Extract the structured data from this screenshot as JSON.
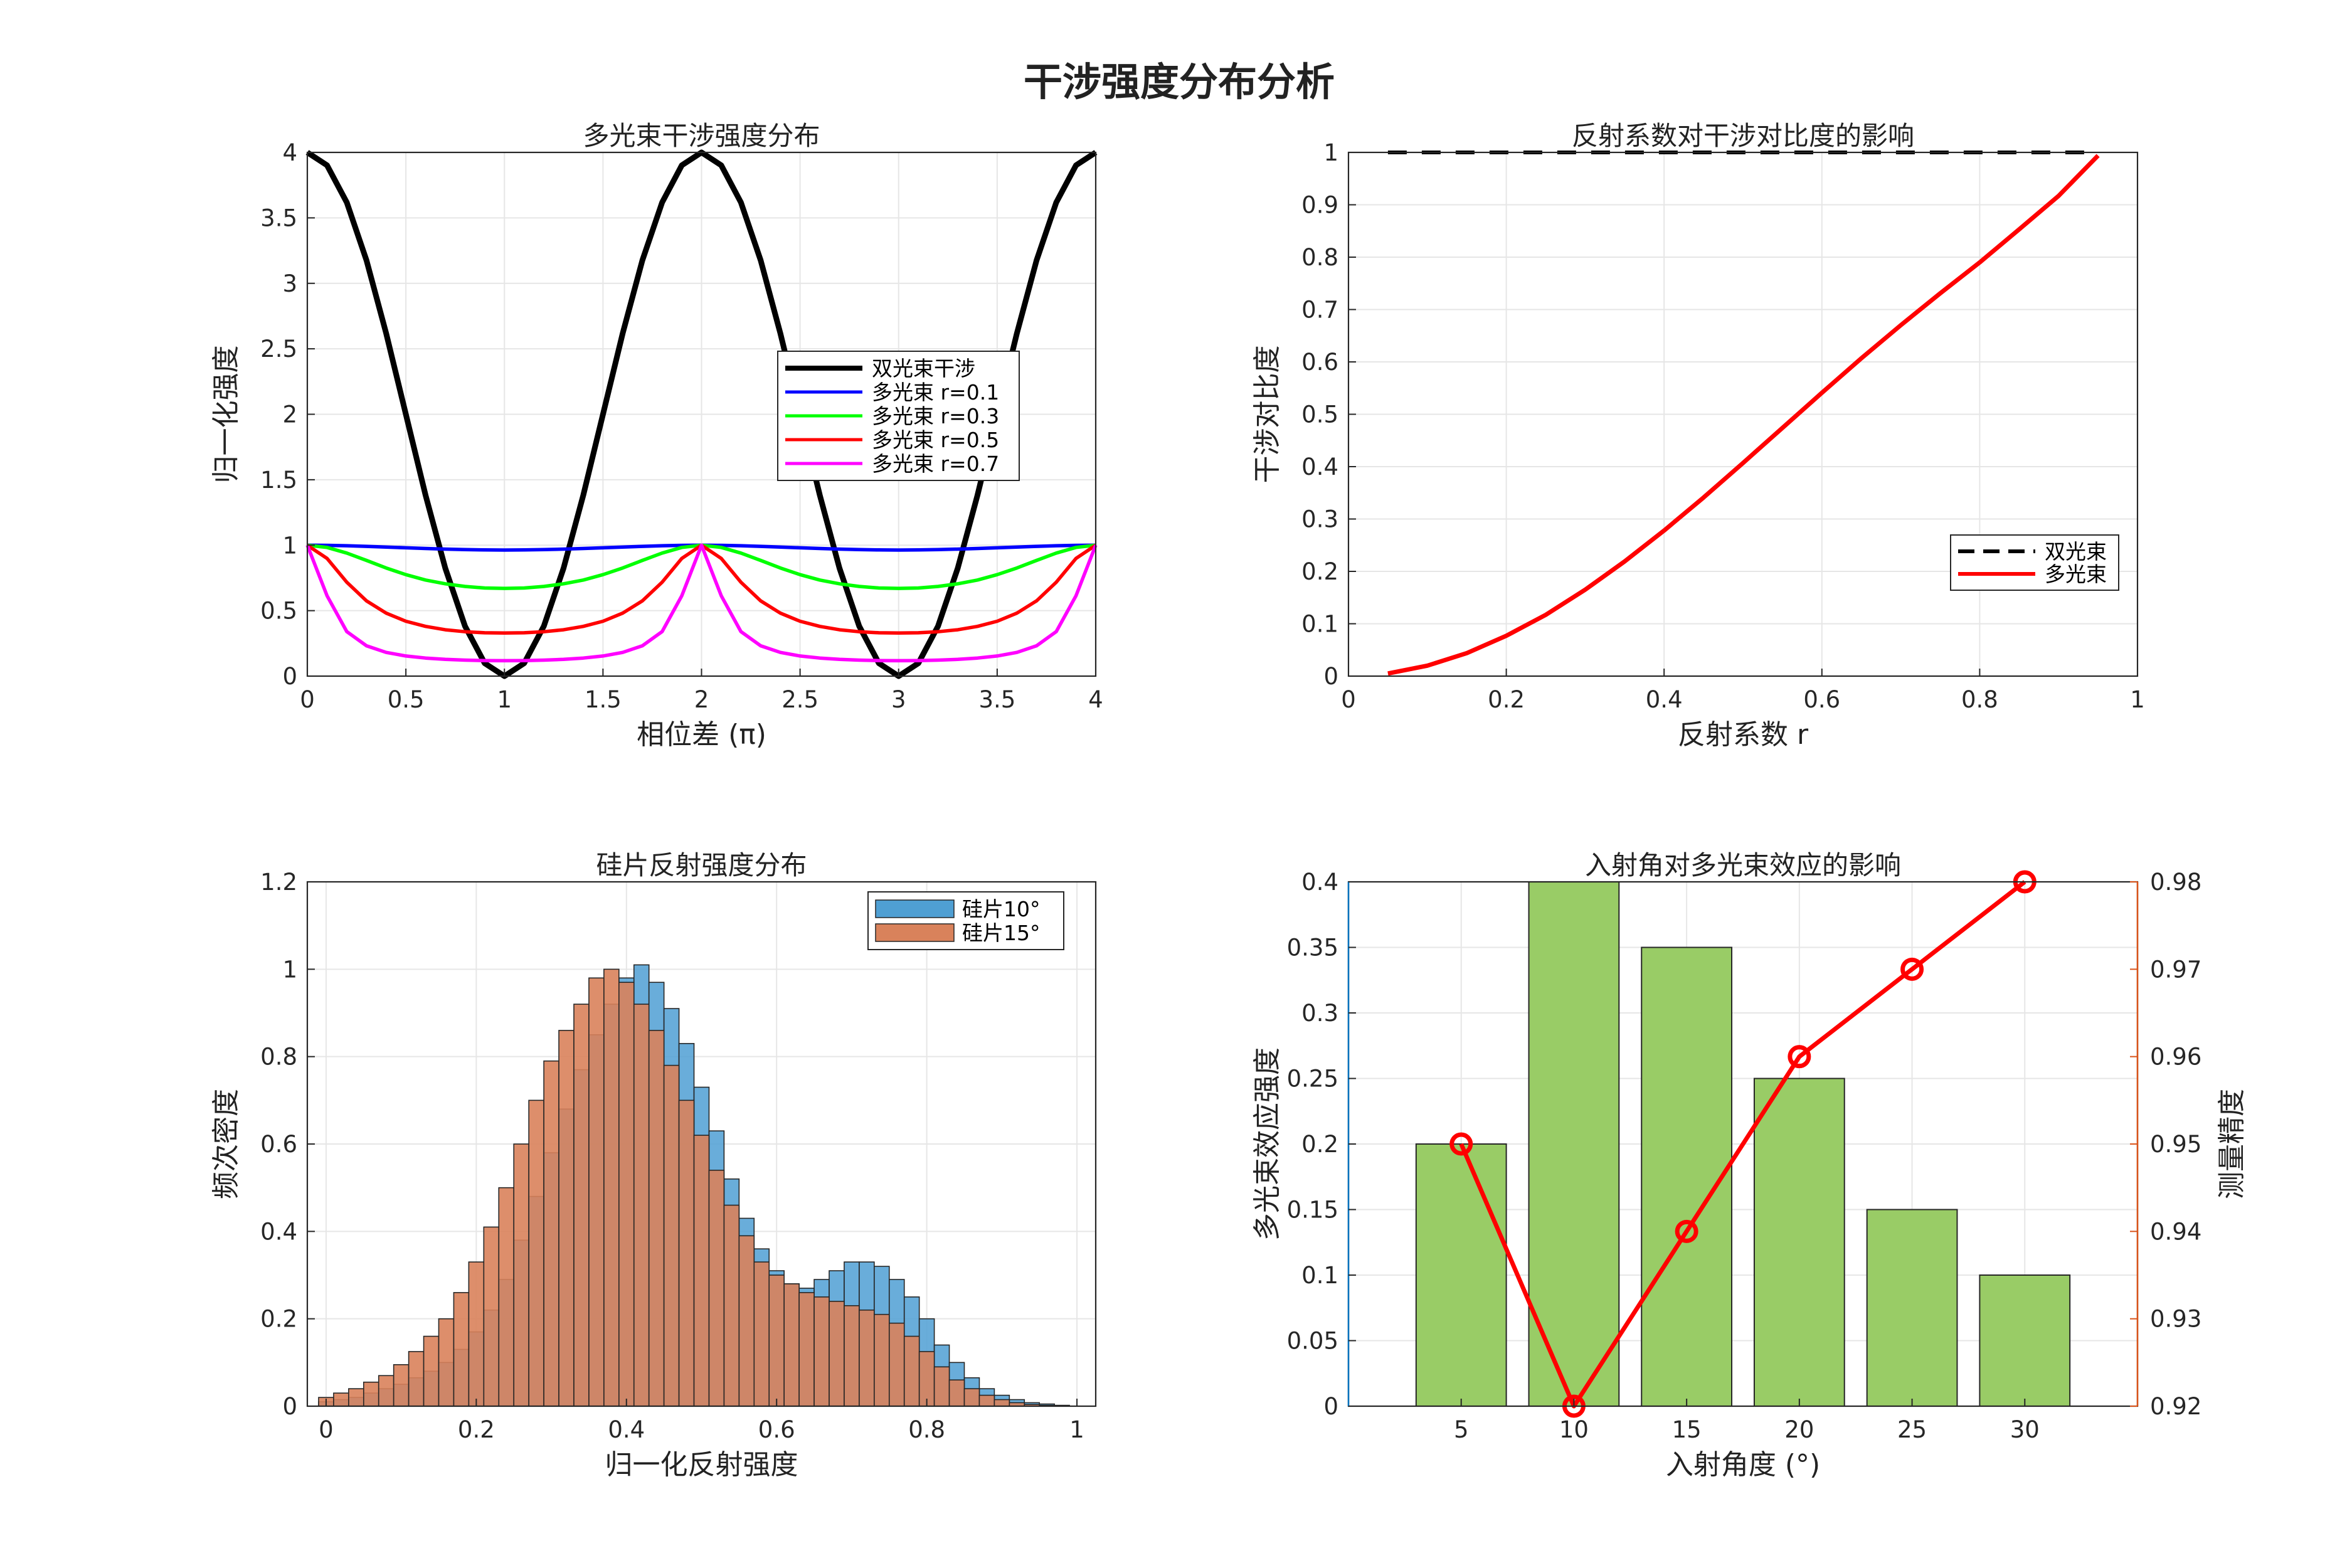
{
  "suptitle": "干涉强度分布分析",
  "chart_data": [
    {
      "type": "line",
      "title": "多光束干涉强度分布",
      "xlabel": "相位差 (π)",
      "ylabel": "归一化强度",
      "xlim": [
        0,
        4
      ],
      "ylim": [
        0,
        4
      ],
      "xticks": [
        0,
        0.5,
        1,
        1.5,
        2,
        2.5,
        3,
        3.5,
        4
      ],
      "xtick_labels": [
        "0",
        "0.5",
        "1",
        "1.5",
        "2",
        "2.5",
        "3",
        "3.5",
        "4"
      ],
      "yticks": [
        0,
        0.5,
        1,
        1.5,
        2,
        2.5,
        3,
        3.5,
        4
      ],
      "ytick_labels": [
        "0",
        "0.5",
        "1",
        "1.5",
        "2",
        "2.5",
        "3",
        "3.5",
        "4"
      ],
      "grid": true,
      "legend_position": "right-center",
      "x": [
        0,
        0.1,
        0.2,
        0.3,
        0.4,
        0.5,
        0.6,
        0.7,
        0.8,
        0.9,
        1,
        1.1,
        1.2,
        1.3,
        1.4,
        1.5,
        1.6,
        1.7,
        1.8,
        1.9,
        2,
        2.1,
        2.2,
        2.3,
        2.4,
        2.5,
        2.6,
        2.7,
        2.8,
        2.9,
        3,
        3.1,
        3.2,
        3.3,
        3.4,
        3.5,
        3.6,
        3.7,
        3.8,
        3.9,
        4
      ],
      "series": [
        {
          "name": "双光束干涉",
          "color": "#000000",
          "values": [
            4,
            3.902,
            3.618,
            3.176,
            2.618,
            2,
            1.382,
            0.824,
            0.382,
            0.098,
            0,
            0.098,
            0.382,
            0.824,
            1.382,
            2,
            2.618,
            3.176,
            3.618,
            3.902,
            4,
            3.902,
            3.618,
            3.176,
            2.618,
            2,
            1.382,
            0.824,
            0.382,
            0.098,
            0,
            0.098,
            0.382,
            0.824,
            1.382,
            2,
            2.618,
            3.176,
            3.618,
            3.902,
            4
          ]
        },
        {
          "name": "多光束 r=0.1",
          "color": "#0000ff",
          "values": [
            1,
            0.999,
            0.996,
            0.991,
            0.986,
            0.98,
            0.975,
            0.97,
            0.966,
            0.964,
            0.963,
            0.964,
            0.966,
            0.97,
            0.975,
            0.98,
            0.986,
            0.991,
            0.996,
            0.999,
            1,
            0.999,
            0.996,
            0.991,
            0.986,
            0.98,
            0.975,
            0.97,
            0.966,
            0.964,
            0.963,
            0.964,
            0.966,
            0.97,
            0.975,
            0.98,
            0.986,
            0.991,
            0.996,
            0.999,
            1
          ]
        },
        {
          "name": "多光束 r=0.3",
          "color": "#00ff00",
          "values": [
            1,
            0.983,
            0.94,
            0.884,
            0.826,
            0.775,
            0.734,
            0.705,
            0.685,
            0.673,
            0.67,
            0.673,
            0.685,
            0.705,
            0.734,
            0.775,
            0.826,
            0.884,
            0.94,
            0.983,
            1,
            0.983,
            0.94,
            0.884,
            0.826,
            0.775,
            0.734,
            0.705,
            0.685,
            0.673,
            0.67,
            0.673,
            0.685,
            0.705,
            0.734,
            0.775,
            0.826,
            0.884,
            0.94,
            0.983,
            1
          ]
        },
        {
          "name": "多光束 r=0.5",
          "color": "#ff0000",
          "values": [
            1,
            0.899,
            0.717,
            0.575,
            0.481,
            0.419,
            0.38,
            0.354,
            0.339,
            0.331,
            0.329,
            0.331,
            0.339,
            0.354,
            0.38,
            0.419,
            0.481,
            0.575,
            0.717,
            0.899,
            1,
            0.899,
            0.717,
            0.575,
            0.481,
            0.419,
            0.38,
            0.354,
            0.339,
            0.331,
            0.329,
            0.331,
            0.339,
            0.354,
            0.38,
            0.419,
            0.481,
            0.575,
            0.717,
            0.899,
            1
          ]
        },
        {
          "name": "多光束 r=0.7",
          "color": "#ff00ff",
          "values": [
            1,
            0.614,
            0.34,
            0.232,
            0.181,
            0.154,
            0.138,
            0.128,
            0.122,
            0.119,
            0.118,
            0.119,
            0.122,
            0.128,
            0.138,
            0.154,
            0.181,
            0.232,
            0.34,
            0.614,
            1,
            0.614,
            0.34,
            0.232,
            0.181,
            0.154,
            0.138,
            0.128,
            0.122,
            0.119,
            0.118,
            0.119,
            0.122,
            0.128,
            0.138,
            0.154,
            0.181,
            0.232,
            0.34,
            0.614,
            1
          ]
        }
      ]
    },
    {
      "type": "line",
      "title": "反射系数对干涉对比度的影响",
      "xlabel": "反射系数 r",
      "ylabel": "干涉对比度",
      "xlim": [
        0,
        1
      ],
      "ylim": [
        0,
        1
      ],
      "xticks": [
        0,
        0.2,
        0.4,
        0.6,
        0.8,
        1
      ],
      "xtick_labels": [
        "0",
        "0.2",
        "0.4",
        "0.6",
        "0.8",
        "1"
      ],
      "yticks": [
        0,
        0.1,
        0.2,
        0.3,
        0.4,
        0.5,
        0.6,
        0.7,
        0.8,
        0.9,
        1
      ],
      "ytick_labels": [
        "0",
        "0.1",
        "0.2",
        "0.3",
        "0.4",
        "0.5",
        "0.6",
        "0.7",
        "0.8",
        "0.9",
        "1"
      ],
      "grid": true,
      "legend_position": "bottom-right",
      "x": [
        0.05,
        0.1,
        0.15,
        0.2,
        0.25,
        0.3,
        0.35,
        0.4,
        0.45,
        0.5,
        0.55,
        0.6,
        0.65,
        0.7,
        0.75,
        0.8,
        0.85,
        0.9,
        0.95
      ],
      "series": [
        {
          "name": "双光束",
          "color": "#000000",
          "dash": true,
          "values": [
            1,
            1,
            1,
            1,
            1,
            1,
            1,
            1,
            1,
            1,
            1,
            1,
            1,
            1,
            1,
            1,
            1,
            1,
            1
          ]
        },
        {
          "name": "多光束",
          "color": "#ff0000",
          "values": [
            0.005,
            0.02,
            0.044,
            0.077,
            0.117,
            0.165,
            0.219,
            0.278,
            0.341,
            0.407,
            0.474,
            0.541,
            0.607,
            0.67,
            0.731,
            0.79,
            0.853,
            0.917,
            0.994
          ]
        }
      ]
    },
    {
      "type": "bar",
      "title": "硅片反射强度分布",
      "xlabel": "归一化反射强度",
      "ylabel": "频次密度",
      "xlim": [
        -0.025,
        1.025
      ],
      "ylim": [
        0,
        1.2
      ],
      "xticks": [
        0,
        0.2,
        0.4,
        0.6,
        0.8,
        1
      ],
      "xtick_labels": [
        "0",
        "0.2",
        "0.4",
        "0.6",
        "0.8",
        "1"
      ],
      "yticks": [
        0,
        0.2,
        0.4,
        0.6,
        0.8,
        1,
        1.2
      ],
      "ytick_labels": [
        "0",
        "0.2",
        "0.4",
        "0.6",
        "0.8",
        "1",
        "1.2"
      ],
      "grid": true,
      "legend_position": "top-right",
      "bin_width": 0.02,
      "x": [
        0,
        0.02,
        0.04,
        0.06,
        0.08,
        0.1,
        0.12,
        0.14,
        0.16,
        0.18,
        0.2,
        0.22,
        0.24,
        0.26,
        0.28,
        0.3,
        0.32,
        0.34,
        0.36,
        0.38,
        0.4,
        0.42,
        0.44,
        0.46,
        0.48,
        0.5,
        0.52,
        0.54,
        0.56,
        0.58,
        0.6,
        0.62,
        0.64,
        0.66,
        0.68,
        0.7,
        0.72,
        0.74,
        0.76,
        0.78,
        0.8,
        0.82,
        0.84,
        0.86,
        0.88,
        0.9,
        0.92,
        0.94,
        0.96,
        0.98
      ],
      "series": [
        {
          "name": "硅片10°",
          "color": "#4f9fd3",
          "values": [
            0.01,
            0.015,
            0.02,
            0.03,
            0.04,
            0.05,
            0.065,
            0.08,
            0.1,
            0.13,
            0.17,
            0.22,
            0.29,
            0.38,
            0.48,
            0.58,
            0.68,
            0.77,
            0.85,
            0.92,
            0.98,
            1.01,
            0.97,
            0.91,
            0.83,
            0.73,
            0.63,
            0.52,
            0.43,
            0.36,
            0.31,
            0.28,
            0.27,
            0.29,
            0.31,
            0.33,
            0.33,
            0.32,
            0.29,
            0.25,
            0.2,
            0.14,
            0.1,
            0.065,
            0.04,
            0.025,
            0.015,
            0.008,
            0.005,
            0.002
          ]
        },
        {
          "name": "硅片15°",
          "color": "#d9825b",
          "values": [
            0.02,
            0.03,
            0.04,
            0.055,
            0.07,
            0.095,
            0.125,
            0.16,
            0.2,
            0.26,
            0.33,
            0.41,
            0.5,
            0.6,
            0.7,
            0.79,
            0.86,
            0.92,
            0.98,
            1.0,
            0.97,
            0.92,
            0.86,
            0.78,
            0.7,
            0.62,
            0.54,
            0.46,
            0.39,
            0.33,
            0.3,
            0.28,
            0.26,
            0.25,
            0.24,
            0.23,
            0.22,
            0.21,
            0.19,
            0.16,
            0.125,
            0.09,
            0.06,
            0.04,
            0.025,
            0.015,
            0.008,
            0.004,
            0.002,
            0.001
          ]
        }
      ]
    },
    {
      "type": "bar",
      "title": "入射角对多光束效应的影响",
      "xlabel": "入射角度 (°)",
      "ylabel": "多光束效应强度",
      "ylabel_color": "#0072bd",
      "y2label": "测量精度",
      "y2label_color": "#d95319",
      "xlim": [
        0,
        35
      ],
      "ylim": [
        0,
        0.4
      ],
      "y2lim": [
        0.92,
        0.98
      ],
      "categories": [
        "5",
        "10",
        "15",
        "20",
        "25",
        "30"
      ],
      "x": [
        5,
        10,
        15,
        20,
        25,
        30
      ],
      "yticks": [
        0,
        0.05,
        0.1,
        0.15,
        0.2,
        0.25,
        0.3,
        0.35,
        0.4
      ],
      "ytick_labels": [
        "0",
        "0.05",
        "0.1",
        "0.15",
        "0.2",
        "0.25",
        "0.3",
        "0.35",
        "0.4"
      ],
      "y2ticks": [
        0.92,
        0.93,
        0.94,
        0.95,
        0.96,
        0.97,
        0.98
      ],
      "y2tick_labels": [
        "0.92",
        "0.93",
        "0.94",
        "0.95",
        "0.96",
        "0.97",
        "0.98"
      ],
      "grid": true,
      "series": [
        {
          "name": "多光束效应强度",
          "kind": "bar",
          "color": "#99cc66",
          "values": [
            0.2,
            0.4,
            0.35,
            0.25,
            0.15,
            0.1
          ]
        },
        {
          "name": "测量精度",
          "kind": "line",
          "axis": "right",
          "color": "#ff0000",
          "values": [
            0.95,
            0.92,
            0.94,
            0.96,
            0.97,
            0.98
          ]
        }
      ]
    }
  ]
}
